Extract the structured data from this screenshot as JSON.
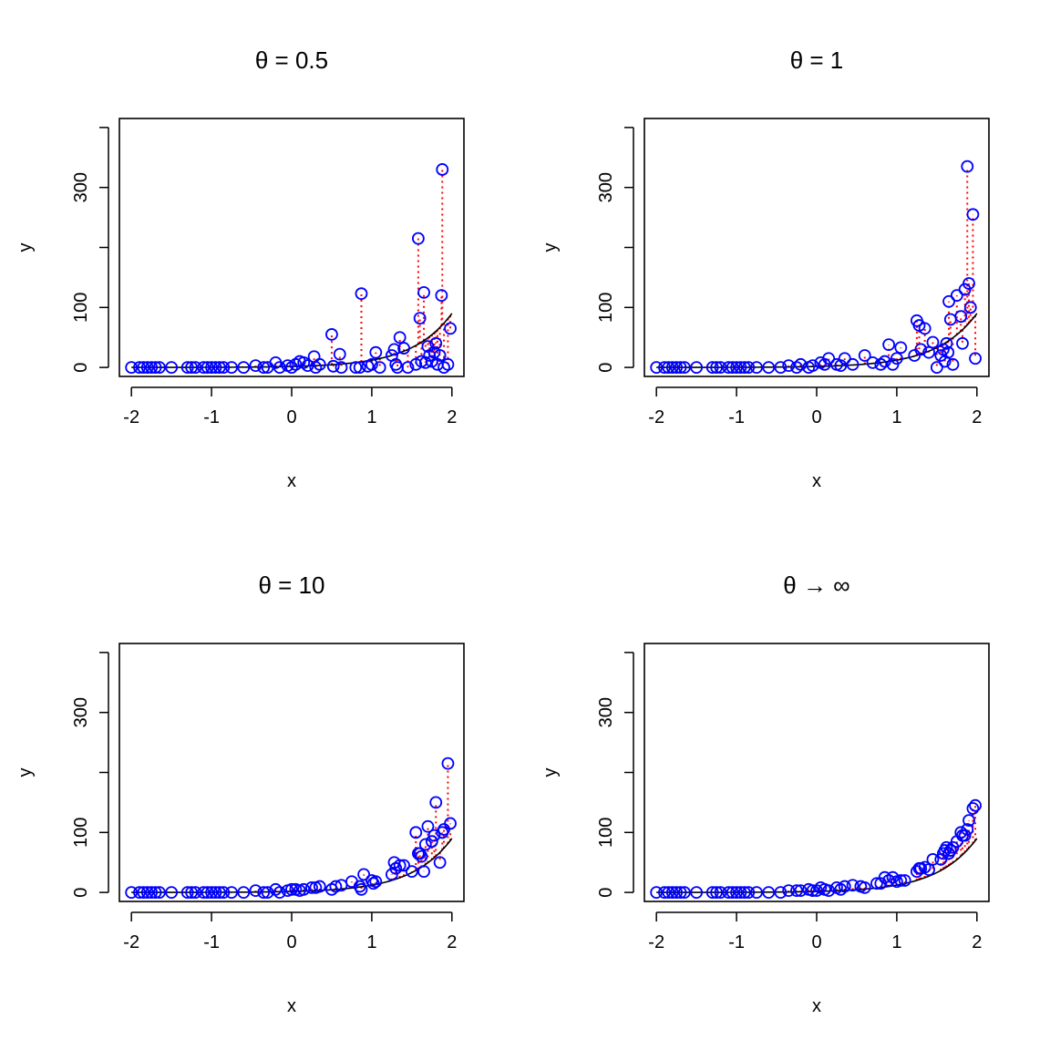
{
  "figure": {
    "colors": {
      "points": "#0000ff",
      "residuals": "#ff0000",
      "curve": "#000000",
      "background": "#ffffff"
    }
  },
  "chart_data": [
    {
      "type": "scatter",
      "title": "θ = 0.5",
      "xlabel": "x",
      "ylabel": "y",
      "xlim": [
        -2.15,
        2.15
      ],
      "ylim": [
        -15,
        415
      ],
      "xticks": [
        -2,
        -1,
        0,
        1,
        2
      ],
      "yticks": [
        0,
        100,
        300
      ],
      "yticks_unlabeled": [
        200,
        400
      ],
      "grid": false,
      "legend": "none",
      "curve": "exp(0.5 + 2*x)",
      "points": {
        "x": [
          -2,
          -1.9,
          -1.85,
          -1.8,
          -1.75,
          -1.7,
          -1.65,
          -1.5,
          -1.3,
          -1.25,
          -1.2,
          -1.1,
          -1.05,
          -1.0,
          -0.95,
          -0.9,
          -0.85,
          -0.75,
          -0.6,
          -0.45,
          -0.35,
          -0.3,
          -0.2,
          -0.15,
          -0.05,
          0.0,
          0.05,
          0.1,
          0.15,
          0.2,
          0.28,
          0.3,
          0.35,
          0.5,
          0.52,
          0.6,
          0.62,
          0.8,
          0.85,
          0.87,
          0.95,
          1.0,
          1.05,
          1.1,
          1.25,
          1.28,
          1.3,
          1.32,
          1.35,
          1.4,
          1.45,
          1.55,
          1.58,
          1.6,
          1.62,
          1.65,
          1.67,
          1.7,
          1.72,
          1.75,
          1.78,
          1.8,
          1.82,
          1.85,
          1.87,
          1.88,
          1.9,
          1.95,
          1.98
        ],
        "y": [
          0,
          0,
          0,
          0,
          0,
          0,
          0,
          0,
          0,
          0,
          0,
          0,
          0,
          0,
          0,
          0,
          0,
          0,
          0,
          3,
          0,
          0,
          8,
          0,
          3,
          0,
          5,
          10,
          8,
          3,
          18,
          0,
          5,
          55,
          2,
          22,
          0,
          0,
          0,
          123,
          2,
          5,
          25,
          0,
          20,
          30,
          5,
          0,
          50,
          32,
          0,
          5,
          215,
          82,
          10,
          125,
          8,
          35,
          20,
          10,
          25,
          40,
          5,
          20,
          120,
          330,
          0,
          5,
          65
        ]
      }
    },
    {
      "type": "scatter",
      "title": "θ = 1",
      "xlabel": "x",
      "ylabel": "y",
      "xlim": [
        -2.15,
        2.15
      ],
      "ylim": [
        -15,
        415
      ],
      "xticks": [
        -2,
        -1,
        0,
        1,
        2
      ],
      "yticks": [
        0,
        100,
        300
      ],
      "yticks_unlabeled": [
        200,
        400
      ],
      "grid": false,
      "legend": "none",
      "curve": "exp(0.5 + 2*x)",
      "points": {
        "x": [
          -2,
          -1.9,
          -1.85,
          -1.8,
          -1.75,
          -1.7,
          -1.65,
          -1.5,
          -1.3,
          -1.25,
          -1.2,
          -1.1,
          -1.05,
          -1.0,
          -0.95,
          -0.9,
          -0.85,
          -0.75,
          -0.6,
          -0.45,
          -0.35,
          -0.25,
          -0.2,
          -0.1,
          -0.05,
          0.05,
          0.1,
          0.15,
          0.25,
          0.3,
          0.35,
          0.45,
          0.6,
          0.7,
          0.8,
          0.85,
          0.9,
          0.95,
          1.0,
          1.05,
          1.22,
          1.25,
          1.28,
          1.3,
          1.35,
          1.4,
          1.45,
          1.5,
          1.55,
          1.58,
          1.6,
          1.62,
          1.64,
          1.65,
          1.67,
          1.7,
          1.75,
          1.8,
          1.82,
          1.85,
          1.88,
          1.9,
          1.92,
          1.95,
          1.98
        ],
        "y": [
          0,
          0,
          0,
          0,
          0,
          0,
          0,
          0,
          0,
          0,
          0,
          0,
          0,
          0,
          0,
          0,
          0,
          0,
          0,
          0,
          3,
          0,
          5,
          0,
          3,
          8,
          5,
          15,
          5,
          3,
          15,
          5,
          20,
          8,
          5,
          10,
          38,
          5,
          15,
          33,
          20,
          78,
          70,
          30,
          65,
          25,
          42,
          0,
          20,
          30,
          10,
          40,
          25,
          110,
          80,
          5,
          120,
          85,
          40,
          130,
          335,
          140,
          100,
          255,
          15
        ]
      }
    },
    {
      "type": "scatter",
      "title": "θ = 10",
      "xlabel": "x",
      "ylabel": "y",
      "xlim": [
        -2.15,
        2.15
      ],
      "ylim": [
        -15,
        415
      ],
      "xticks": [
        -2,
        -1,
        0,
        1,
        2
      ],
      "yticks": [
        0,
        100,
        300
      ],
      "yticks_unlabeled": [
        200,
        400
      ],
      "grid": false,
      "legend": "none",
      "curve": "exp(0.5 + 2*x)",
      "points": {
        "x": [
          -2,
          -1.9,
          -1.85,
          -1.8,
          -1.75,
          -1.7,
          -1.65,
          -1.5,
          -1.3,
          -1.25,
          -1.2,
          -1.1,
          -1.05,
          -1.0,
          -0.95,
          -0.9,
          -0.85,
          -0.75,
          -0.6,
          -0.45,
          -0.35,
          -0.3,
          -0.2,
          -0.15,
          -0.05,
          0.0,
          0.05,
          0.1,
          0.15,
          0.25,
          0.3,
          0.35,
          0.5,
          0.55,
          0.62,
          0.75,
          0.85,
          0.87,
          0.9,
          1.0,
          1.02,
          1.05,
          1.25,
          1.28,
          1.3,
          1.35,
          1.4,
          1.5,
          1.55,
          1.58,
          1.6,
          1.62,
          1.65,
          1.67,
          1.7,
          1.75,
          1.78,
          1.8,
          1.85,
          1.88,
          1.9,
          1.95,
          1.98
        ],
        "y": [
          0,
          0,
          0,
          0,
          0,
          0,
          0,
          0,
          0,
          0,
          0,
          0,
          0,
          0,
          0,
          0,
          0,
          0,
          0,
          3,
          0,
          0,
          5,
          0,
          3,
          5,
          5,
          3,
          5,
          8,
          8,
          10,
          5,
          10,
          12,
          18,
          10,
          5,
          30,
          20,
          15,
          18,
          30,
          50,
          40,
          45,
          45,
          35,
          100,
          65,
          65,
          60,
          35,
          80,
          110,
          85,
          95,
          150,
          50,
          100,
          105,
          215,
          115
        ]
      }
    },
    {
      "type": "scatter",
      "title": "θ → ∞",
      "xlabel": "x",
      "ylabel": "y",
      "xlim": [
        -2.15,
        2.15
      ],
      "ylim": [
        -15,
        415
      ],
      "xticks": [
        -2,
        -1,
        0,
        1,
        2
      ],
      "yticks": [
        0,
        100,
        300
      ],
      "yticks_unlabeled": [
        200,
        400
      ],
      "grid": false,
      "legend": "none",
      "curve": "exp(0.5 + 2*x)",
      "points": {
        "x": [
          -2,
          -1.9,
          -1.85,
          -1.8,
          -1.75,
          -1.7,
          -1.65,
          -1.5,
          -1.3,
          -1.25,
          -1.2,
          -1.1,
          -1.05,
          -1.0,
          -0.95,
          -0.9,
          -0.85,
          -0.75,
          -0.6,
          -0.45,
          -0.35,
          -0.25,
          -0.2,
          -0.1,
          -0.05,
          0.0,
          0.05,
          0.1,
          0.15,
          0.25,
          0.3,
          0.35,
          0.45,
          0.55,
          0.6,
          0.75,
          0.8,
          0.85,
          0.9,
          0.95,
          1.0,
          1.05,
          1.1,
          1.25,
          1.28,
          1.3,
          1.35,
          1.4,
          1.45,
          1.55,
          1.58,
          1.6,
          1.62,
          1.65,
          1.67,
          1.7,
          1.75,
          1.8,
          1.82,
          1.85,
          1.88,
          1.9,
          1.95,
          1.98
        ],
        "y": [
          0,
          0,
          0,
          0,
          0,
          0,
          0,
          0,
          0,
          0,
          0,
          0,
          0,
          0,
          0,
          0,
          0,
          0,
          0,
          0,
          3,
          3,
          3,
          5,
          3,
          3,
          8,
          5,
          3,
          8,
          5,
          10,
          12,
          10,
          8,
          15,
          15,
          25,
          20,
          25,
          18,
          20,
          20,
          35,
          40,
          40,
          42,
          38,
          55,
          55,
          65,
          70,
          75,
          65,
          70,
          75,
          85,
          100,
          95,
          95,
          105,
          120,
          140,
          145
        ]
      }
    }
  ]
}
